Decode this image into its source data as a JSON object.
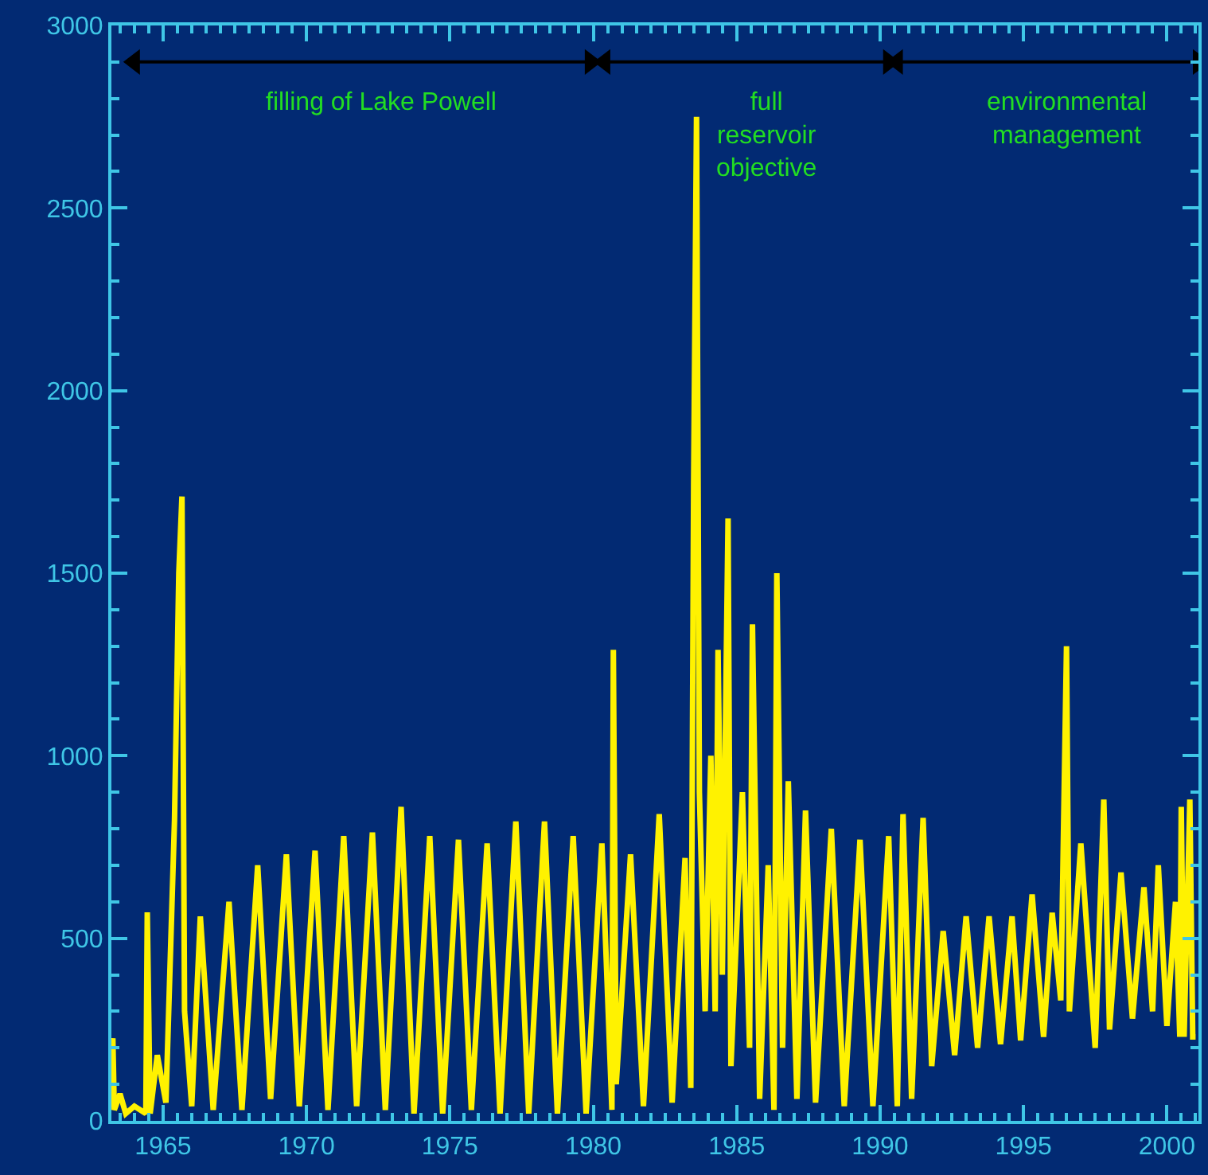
{
  "chart_data": {
    "type": "line",
    "x": [
      1963.2,
      1963.25,
      1963.3,
      1963.5,
      1963.7,
      1964.0,
      1964.4,
      1964.45,
      1964.55,
      1964.8,
      1965.1,
      1965.4,
      1965.55,
      1965.66,
      1965.75,
      1966.0,
      1966.3,
      1966.75,
      1967.3,
      1967.75,
      1968.3,
      1968.75,
      1969.3,
      1969.75,
      1970.3,
      1970.75,
      1971.3,
      1971.75,
      1972.3,
      1972.75,
      1973.3,
      1973.75,
      1974.3,
      1974.75,
      1975.3,
      1975.75,
      1976.3,
      1976.75,
      1977.3,
      1977.75,
      1978.3,
      1978.75,
      1979.3,
      1979.75,
      1980.3,
      1980.65,
      1980.7,
      1980.8,
      1981.3,
      1981.75,
      1982.3,
      1982.75,
      1983.2,
      1983.4,
      1983.5,
      1983.6,
      1983.7,
      1983.9,
      1984.1,
      1984.25,
      1984.35,
      1984.5,
      1984.7,
      1984.8,
      1985.2,
      1985.45,
      1985.55,
      1985.8,
      1986.1,
      1986.3,
      1986.4,
      1986.6,
      1986.8,
      1987.1,
      1987.4,
      1987.75,
      1988.3,
      1988.75,
      1989.3,
      1989.75,
      1990.3,
      1990.6,
      1990.8,
      1991.1,
      1991.5,
      1991.8,
      1992.2,
      1992.6,
      1993.0,
      1993.4,
      1993.8,
      1994.2,
      1994.6,
      1994.9,
      1995.3,
      1995.7,
      1996.0,
      1996.3,
      1996.5,
      1996.6,
      1997.0,
      1997.5,
      1997.8,
      1998.0,
      1998.4,
      1998.8,
      1999.2,
      1999.5,
      1999.7,
      2000.0,
      2000.3,
      2000.45,
      2000.5,
      2000.6,
      2000.8,
      2000.9,
      2001.0
    ],
    "series": [
      {
        "color": "#fff200",
        "values": [
          200,
          226,
          30,
          74,
          20,
          40,
          20,
          571,
          20,
          180,
          50,
          824,
          1500,
          1710,
          300,
          40,
          560,
          30,
          600,
          30,
          700,
          60,
          730,
          40,
          740,
          30,
          780,
          40,
          790,
          30,
          860,
          20,
          780,
          20,
          770,
          30,
          760,
          20,
          820,
          20,
          820,
          20,
          780,
          20,
          760,
          30,
          1290,
          100,
          730,
          40,
          840,
          50,
          720,
          90,
          1740,
          2750,
          900,
          300,
          1000,
          300,
          1290,
          400,
          1650,
          150,
          900,
          200,
          1360,
          60,
          700,
          30,
          1500,
          200,
          930,
          60,
          850,
          50,
          800,
          40,
          770,
          40,
          780,
          40,
          840,
          60,
          830,
          150,
          520,
          180,
          560,
          200,
          560,
          210,
          560,
          220,
          620,
          230,
          570,
          330,
          1300,
          300,
          760,
          200,
          880,
          250,
          680,
          280,
          640,
          300,
          700,
          260,
          600,
          230,
          860,
          230,
          880,
          230,
          230
        ]
      },
      {
        "type": "line",
        "color": "#000000",
        "x": [
          1964.0,
          1979.9
        ],
        "values": [
          2900,
          2900
        ],
        "marker": "triangle"
      },
      {
        "type": "line",
        "color": "#000000",
        "x": [
          1980.4,
          1990.3
        ],
        "values": [
          2900,
          2900
        ],
        "marker": "triangle"
      },
      {
        "type": "line",
        "color": "#000000",
        "x": [
          1990.6,
          2001.1
        ],
        "values": [
          2900,
          2900
        ],
        "marker": "triangle"
      }
    ],
    "xlim": [
      1963.2,
      2001.1
    ],
    "xticks": [
      1965,
      1970,
      1975,
      1980,
      1985,
      1990,
      1995,
      2000
    ],
    "ylim": [
      0,
      3000
    ],
    "yticks": [
      0,
      500,
      1000,
      1500,
      2000,
      2500,
      3000
    ],
    "grid": false,
    "marker": "none",
    "line_style": "solid",
    "annotations": [
      "filling of Lake Powell",
      "full\nreservoir\nobjective",
      "environmental\nmanagement"
    ]
  }
}
